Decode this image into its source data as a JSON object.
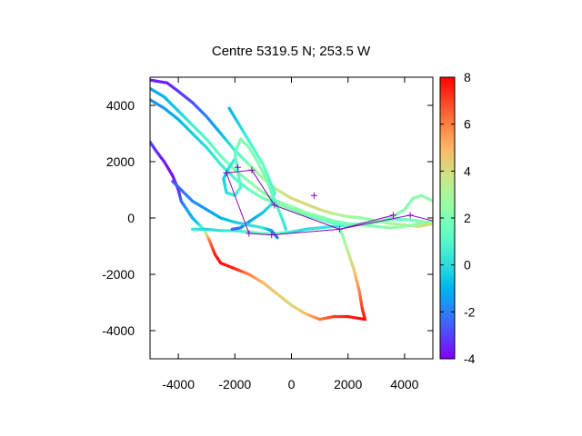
{
  "chart_data": {
    "type": "scatter",
    "title": "Centre 5319.5 N; 253.5  W",
    "xlabel": "",
    "ylabel": "",
    "xlim": [
      -5000,
      5000
    ],
    "ylim": [
      -5000,
      5000
    ],
    "xticks": [
      -4000,
      -2000,
      0,
      2000,
      4000
    ],
    "yticks": [
      -4000,
      -2000,
      0,
      2000,
      4000
    ],
    "xtick_labels": [
      "-4000",
      "-2000",
      "0",
      "2000",
      "4000"
    ],
    "ytick_labels": [
      "-4000",
      "-2000",
      "0",
      "2000",
      "4000"
    ],
    "colorbar": {
      "range": [
        -4,
        8
      ],
      "ticks": [
        -4,
        -2,
        0,
        2,
        4,
        6,
        8
      ],
      "tick_labels": [
        "-4",
        "-2",
        "0",
        "2",
        "4",
        "6",
        "8"
      ],
      "palette": "rainbow"
    },
    "grid": false,
    "legend": "none",
    "tracks": [
      {
        "points": [
          [
            -5000,
            2700,
            -2.8
          ],
          [
            -4800,
            2400,
            -3.2
          ],
          [
            -4500,
            2000,
            -3.6
          ],
          [
            -4200,
            1500,
            -3.8
          ],
          [
            -4000,
            1000,
            -3.5
          ],
          [
            -3900,
            600,
            -2.5
          ],
          [
            -3700,
            300,
            -1.5
          ],
          [
            -3500,
            0,
            -1.0
          ],
          [
            -3300,
            -200,
            -0.5
          ],
          [
            -3100,
            -400,
            1.5
          ],
          [
            -2900,
            -800,
            6.0
          ],
          [
            -2700,
            -1300,
            7.5
          ],
          [
            -2500,
            -1600,
            7.8
          ],
          [
            -2000,
            -1800,
            7.5
          ],
          [
            -1500,
            -2000,
            6.0
          ],
          [
            -1000,
            -2300,
            5.0
          ],
          [
            -500,
            -2700,
            4.5
          ],
          [
            0,
            -3100,
            4.2
          ],
          [
            500,
            -3400,
            4.8
          ],
          [
            1000,
            -3600,
            6.0
          ],
          [
            1500,
            -3500,
            7.0
          ],
          [
            2000,
            -3500,
            7.5
          ],
          [
            2600,
            -3600,
            7.8
          ],
          [
            2500,
            -3200,
            7.2
          ],
          [
            2400,
            -2600,
            6.0
          ],
          [
            2200,
            -1800,
            4.5
          ],
          [
            2000,
            -1200,
            3.5
          ],
          [
            1800,
            -600,
            2.5
          ],
          [
            1700,
            -400,
            1.5
          ]
        ]
      },
      {
        "points": [
          [
            -3500,
            -400,
            0.5
          ],
          [
            -3000,
            -400,
            -0.2
          ],
          [
            -2500,
            -450,
            0.2
          ],
          [
            -2000,
            -450,
            0.5
          ],
          [
            -1500,
            -500,
            1.0
          ],
          [
            -1000,
            -550,
            1.5
          ],
          [
            -500,
            -550,
            1.8
          ],
          [
            0,
            -500,
            0.2
          ],
          [
            500,
            -400,
            0.0
          ],
          [
            1000,
            -350,
            0.2
          ],
          [
            1500,
            -300,
            0.5
          ],
          [
            2000,
            -250,
            0.4
          ],
          [
            2500,
            -200,
            0.3
          ],
          [
            3000,
            -150,
            0.6
          ],
          [
            3500,
            -50,
            1.0
          ],
          [
            4000,
            -50,
            1.5
          ],
          [
            4500,
            -100,
            2.0
          ],
          [
            5000,
            -200,
            2.5
          ]
        ]
      },
      {
        "points": [
          [
            -5000,
            4900,
            -3.5
          ],
          [
            -4400,
            4800,
            -3.5
          ],
          [
            -4000,
            4500,
            -3.2
          ],
          [
            -3500,
            4100,
            -2.8
          ],
          [
            -3000,
            3600,
            -2.0
          ],
          [
            -2500,
            3000,
            -1.0
          ],
          [
            -2000,
            2400,
            0.5
          ],
          [
            -1500,
            1900,
            2.0
          ],
          [
            -1000,
            1400,
            3.0
          ],
          [
            -500,
            1000,
            3.5
          ],
          [
            0,
            700,
            4.0
          ],
          [
            500,
            500,
            4.2
          ],
          [
            1000,
            300,
            4.0
          ],
          [
            1500,
            150,
            3.5
          ],
          [
            2000,
            50,
            3.0
          ],
          [
            2500,
            0,
            2.5
          ],
          [
            3000,
            -100,
            2.5
          ],
          [
            3500,
            -200,
            3.0
          ],
          [
            4000,
            -250,
            3.5
          ],
          [
            4500,
            -300,
            4.0
          ],
          [
            5000,
            -200,
            4.0
          ]
        ]
      },
      {
        "points": [
          [
            -5000,
            4600,
            -1.5
          ],
          [
            -4500,
            4300,
            -1.0
          ],
          [
            -4000,
            3800,
            -0.5
          ],
          [
            -3500,
            3300,
            0.5
          ],
          [
            -3000,
            2800,
            1.0
          ],
          [
            -2500,
            2200,
            1.5
          ],
          [
            -2000,
            1700,
            2.0
          ],
          [
            -1500,
            1300,
            2.2
          ],
          [
            -1000,
            900,
            2.5
          ],
          [
            -500,
            600,
            2.6
          ],
          [
            0,
            400,
            2.5
          ],
          [
            500,
            200,
            2.4
          ],
          [
            1000,
            50,
            2.2
          ],
          [
            1500,
            -100,
            2.0
          ],
          [
            2000,
            -200,
            1.8
          ],
          [
            2500,
            -250,
            2.0
          ],
          [
            3000,
            -300,
            2.2
          ],
          [
            3500,
            -350,
            2.5
          ],
          [
            4000,
            -300,
            2.5
          ],
          [
            4500,
            -200,
            2.3
          ],
          [
            5000,
            -100,
            2.2
          ]
        ]
      },
      {
        "points": [
          [
            -5000,
            4200,
            -1.8
          ],
          [
            -4500,
            3900,
            -1.5
          ],
          [
            -4000,
            3500,
            -1.0
          ],
          [
            -3500,
            3000,
            -0.5
          ],
          [
            -3000,
            2500,
            0.0
          ],
          [
            -2500,
            1900,
            0.5
          ],
          [
            -2000,
            1400,
            1.0
          ],
          [
            -1500,
            1000,
            1.5
          ],
          [
            -1000,
            700,
            1.8
          ],
          [
            -500,
            500,
            2.0
          ],
          [
            0,
            300,
            2.0
          ],
          [
            500,
            100,
            1.8
          ],
          [
            1000,
            -50,
            1.6
          ],
          [
            1500,
            -200,
            1.5
          ],
          [
            2000,
            -250,
            1.5
          ],
          [
            2500,
            -200,
            1.6
          ],
          [
            3000,
            -150,
            1.8
          ],
          [
            3500,
            0,
            2.0
          ],
          [
            4000,
            300,
            2.0
          ],
          [
            4300,
            700,
            2.2
          ],
          [
            4600,
            800,
            2.4
          ],
          [
            5000,
            600,
            2.5
          ]
        ]
      },
      {
        "points": [
          [
            -2200,
            3900,
            -1.0
          ],
          [
            -1900,
            3400,
            -0.5
          ],
          [
            -1600,
            2900,
            0.5
          ],
          [
            -1300,
            2400,
            1.0
          ],
          [
            -1000,
            1900,
            1.5
          ],
          [
            -800,
            1400,
            1.2
          ],
          [
            -600,
            900,
            0.8
          ],
          [
            -700,
            500,
            0.2
          ],
          [
            -1000,
            200,
            -0.5
          ],
          [
            -1300,
            0,
            -1.0
          ],
          [
            -1600,
            -200,
            -1.5
          ],
          [
            -1800,
            -350,
            -2.0
          ],
          [
            -2100,
            -400,
            -2.5
          ]
        ]
      },
      {
        "points": [
          [
            -2000,
            2100,
            0.5
          ],
          [
            -2200,
            1800,
            0.2
          ],
          [
            -2400,
            1400,
            -0.5
          ],
          [
            -2300,
            900,
            0.0
          ],
          [
            -2000,
            800,
            0.5
          ],
          [
            -1800,
            1100,
            1.0
          ],
          [
            -1900,
            1700,
            1.2
          ],
          [
            -2000,
            2300,
            1.5
          ],
          [
            -1800,
            2800,
            2.0
          ],
          [
            -1500,
            2500,
            2.2
          ],
          [
            -1200,
            2000,
            2.0
          ],
          [
            -900,
            1400,
            2.0
          ],
          [
            -700,
            900,
            1.5
          ],
          [
            -500,
            400,
            1.0
          ],
          [
            -300,
            -100,
            0.5
          ],
          [
            -200,
            -400,
            0.2
          ]
        ]
      },
      {
        "points": [
          [
            -4200,
            1300,
            -2.8
          ],
          [
            -3800,
            900,
            -2.2
          ],
          [
            -3500,
            600,
            -1.8
          ],
          [
            -3000,
            300,
            -1.5
          ],
          [
            -2500,
            0,
            -1.0
          ],
          [
            -2000,
            -150,
            -0.5
          ],
          [
            -1500,
            -250,
            0.0
          ],
          [
            -1000,
            -350,
            0.5
          ],
          [
            -700,
            -450,
            -1.5
          ],
          [
            -500,
            -700,
            -2.5
          ]
        ]
      }
    ],
    "waypoints": [
      [
        -2300,
        1600
      ],
      [
        -1900,
        1800
      ],
      [
        -1400,
        1700
      ],
      [
        -600,
        450
      ],
      [
        800,
        800
      ],
      [
        1700,
        -400
      ],
      [
        3600,
        100
      ],
      [
        4200,
        100
      ],
      [
        -1500,
        -550
      ],
      [
        -700,
        -600
      ]
    ],
    "waypoint_path": [
      [
        -2300,
        1600
      ],
      [
        -1400,
        1700
      ],
      [
        -600,
        450
      ],
      [
        1700,
        -400
      ],
      [
        4200,
        100
      ],
      [
        5000,
        -100
      ]
    ],
    "waypoint_path_2": [
      [
        -2300,
        1600
      ],
      [
        -1500,
        -550
      ],
      [
        -700,
        -600
      ],
      [
        500,
        -500
      ],
      [
        1700,
        -400
      ],
      [
        3600,
        100
      ]
    ]
  }
}
